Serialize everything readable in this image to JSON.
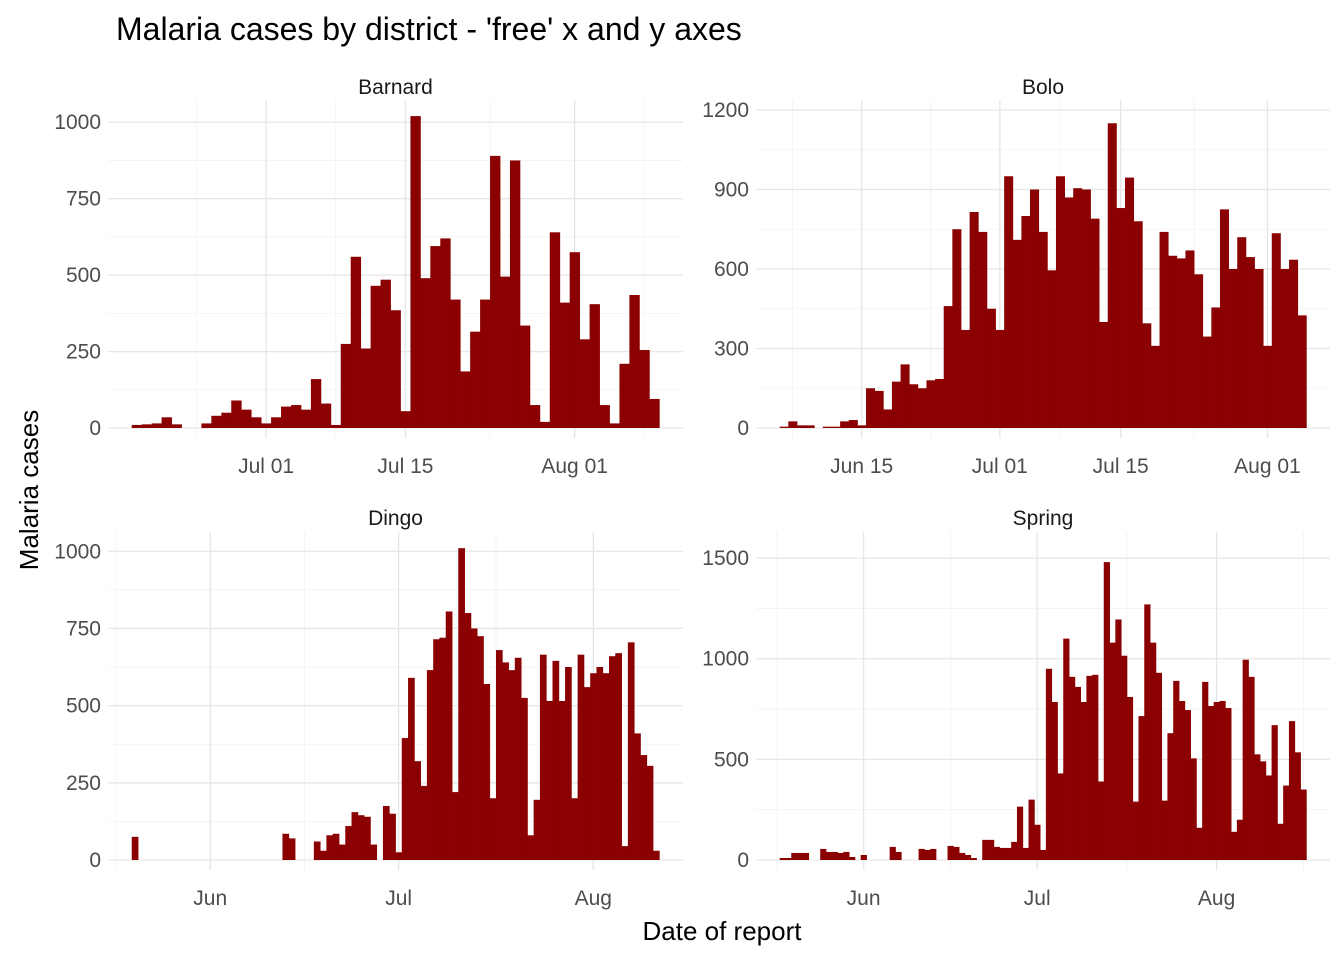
{
  "chart_data": {
    "type": "bar",
    "title": "Malaria cases by district - 'free' x and y axes",
    "xlabel": "Date of report",
    "ylabel": "Malaria cases",
    "bar_color": "#8B0000",
    "grid": true,
    "facets": [
      {
        "name": "Barnard",
        "start_date": "2020-06-18",
        "ylim": [
          0,
          1040
        ],
        "y_ticks": [
          0,
          250,
          500,
          750,
          1000
        ],
        "x_ticks": [
          {
            "date": "2020-07-01",
            "label": "Jul 01"
          },
          {
            "date": "2020-07-15",
            "label": "Jul 15"
          },
          {
            "date": "2020-08-01",
            "label": "Aug 01"
          }
        ],
        "values": [
          10,
          12,
          15,
          35,
          12,
          0,
          0,
          15,
          40,
          50,
          90,
          60,
          35,
          15,
          35,
          70,
          75,
          60,
          160,
          80,
          10,
          275,
          560,
          260,
          465,
          485,
          385,
          55,
          1020,
          490,
          595,
          620,
          420,
          185,
          315,
          420,
          890,
          495,
          875,
          335,
          75,
          20,
          640,
          410,
          575,
          290,
          405,
          75,
          15,
          210,
          435,
          255,
          95
        ]
      },
      {
        "name": "Bolo",
        "start_date": "2020-06-06",
        "ylim": [
          0,
          1200
        ],
        "y_ticks": [
          0,
          300,
          600,
          900,
          1200
        ],
        "x_ticks": [
          {
            "date": "2020-06-15",
            "label": "Jun 15"
          },
          {
            "date": "2020-07-01",
            "label": "Jul 01"
          },
          {
            "date": "2020-07-15",
            "label": "Jul 15"
          },
          {
            "date": "2020-08-01",
            "label": "Aug 01"
          }
        ],
        "values": [
          5,
          25,
          10,
          10,
          0,
          5,
          5,
          25,
          30,
          10,
          150,
          140,
          70,
          175,
          240,
          165,
          150,
          180,
          185,
          460,
          750,
          370,
          815,
          740,
          450,
          370,
          950,
          710,
          800,
          900,
          740,
          595,
          950,
          870,
          905,
          900,
          790,
          400,
          1150,
          830,
          945,
          780,
          395,
          310,
          740,
          650,
          640,
          670,
          580,
          345,
          455,
          825,
          600,
          720,
          645,
          600,
          310,
          735,
          600,
          635,
          425
        ]
      },
      {
        "name": "Dingo",
        "start_date": "2020-05-20",
        "ylim": [
          0,
          1030
        ],
        "y_ticks": [
          0,
          250,
          500,
          750,
          1000
        ],
        "x_ticks": [
          {
            "date": "2020-06-01",
            "label": "Jun"
          },
          {
            "date": "2020-07-01",
            "label": "Jul"
          },
          {
            "date": "2020-08-01",
            "label": "Aug"
          }
        ],
        "values": [
          75,
          0,
          0,
          0,
          0,
          0,
          0,
          0,
          0,
          0,
          0,
          0,
          0,
          0,
          0,
          0,
          0,
          0,
          0,
          0,
          0,
          0,
          0,
          0,
          85,
          70,
          0,
          0,
          0,
          60,
          30,
          80,
          85,
          50,
          110,
          155,
          145,
          140,
          50,
          0,
          175,
          150,
          25,
          395,
          590,
          320,
          240,
          615,
          715,
          720,
          805,
          220,
          1010,
          800,
          750,
          725,
          570,
          200,
          680,
          640,
          615,
          655,
          525,
          80,
          195,
          665,
          515,
          645,
          515,
          625,
          200,
          665,
          560,
          605,
          625,
          605,
          660,
          670,
          45,
          705,
          410,
          340,
          305,
          30
        ]
      },
      {
        "name": "Spring",
        "start_date": "2020-05-18",
        "ylim": [
          0,
          1580
        ],
        "y_ticks": [
          0,
          500,
          1000,
          1500
        ],
        "x_ticks": [
          {
            "date": "2020-06-01",
            "label": "Jun"
          },
          {
            "date": "2020-07-01",
            "label": "Jul"
          },
          {
            "date": "2020-08-01",
            "label": "Aug"
          }
        ],
        "values": [
          10,
          10,
          35,
          35,
          35,
          0,
          0,
          55,
          40,
          40,
          35,
          40,
          15,
          0,
          25,
          0,
          0,
          0,
          0,
          65,
          40,
          0,
          0,
          0,
          55,
          50,
          55,
          0,
          0,
          70,
          65,
          35,
          25,
          10,
          0,
          100,
          100,
          65,
          60,
          60,
          90,
          265,
          60,
          300,
          175,
          50,
          950,
          785,
          430,
          1100,
          910,
          860,
          785,
          915,
          920,
          390,
          1480,
          1080,
          1195,
          1015,
          810,
          290,
          715,
          1270,
          1080,
          930,
          295,
          630,
          890,
          790,
          745,
          505,
          160,
          885,
          765,
          785,
          790,
          755,
          140,
          200,
          995,
          910,
          525,
          490,
          420,
          670,
          180,
          370,
          690,
          535,
          350
        ]
      }
    ]
  }
}
